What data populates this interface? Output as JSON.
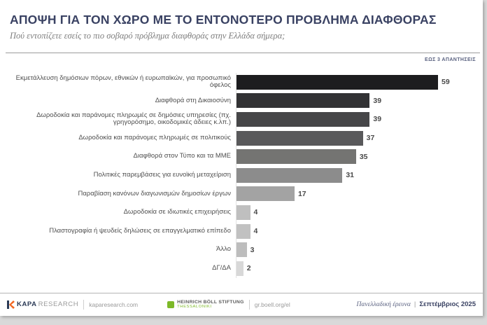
{
  "header": {
    "title": "ΑΠΟΨΗ ΓΙΑ ΤΟΝ ΧΩΡΟ ΜΕ ΤΟ ΕΝΤΟΝΟΤΕΡΟ ΠΡΟΒΛΗΜΑ ΔΙΑΦΘΟΡΑΣ",
    "subtitle": "Πού εντοπίζετε εσείς το πιο σοβαρό πρόβλημα διαφθοράς στην Ελλάδα σήμερα;",
    "answers_note": "ΕΩΣ 3 ΑΠΑΝΤΗΣΕΙΣ"
  },
  "chart_data": {
    "type": "bar",
    "orientation": "horizontal",
    "title": "ΑΠΟΨΗ ΓΙΑ ΤΟΝ ΧΩΡΟ ΜΕ ΤΟ ΕΝΤΟΝΟΤΕΡΟ ΠΡΟΒΛΗΜΑ ΔΙΑΦΘΟΡΑΣ",
    "subtitle": "Πού εντοπίζετε εσείς το πιο σοβαρό πρόβλημα διαφθοράς στην Ελλάδα σήμερα;",
    "categories": [
      "Εκμετάλλευση δημόσιων πόρων, εθνικών ή ευρωπαϊκών, για προσωπικό όφελος",
      "Διαφθορά στη Δικαιοσύνη",
      "Δωροδοκία και παράνομες πληρωμές σε δημόσιες υπηρεσίες (πχ. γρηγορόσημο, οικοδομικές άδειες κ.λπ.)",
      "Δωροδοκία και παράνομες πληρωμές σε πολιτικούς",
      "Διαφθορά στον Τύπο και τα ΜΜΕ",
      "Πολιτικές παρεμβάσεις για ευνοϊκή μεταχείριση",
      "Παραβίαση κανόνων διαγωνισμών δημοσίων έργων",
      "Δωροδοκία σε ιδιωτικές επιχειρήσεις",
      "Πλαστογραφία ή ψευδείς δηλώσεις σε επαγγελματικό επίπεδο",
      "Άλλο",
      "ΔΓ/ΔΑ"
    ],
    "values": [
      59,
      39,
      39,
      37,
      35,
      31,
      17,
      4,
      4,
      3,
      2
    ],
    "bar_colors": [
      "#1d1d1f",
      "#323234",
      "#464648",
      "#59595b",
      "#747472",
      "#8c8c8c",
      "#a3a3a3",
      "#bfbfbf",
      "#c1c1c1",
      "#bdbdbd",
      "#d8d8d8"
    ],
    "xlim": [
      0,
      62
    ],
    "value_labels_shown": true,
    "grid": false,
    "legend": false
  },
  "footer": {
    "kapa_brand": "KAPA",
    "kapa_brand2": "RESEARCH",
    "kapa_url": "kaparesearch.com",
    "boell_name": "HEINRICH BÖLL STIFTUNG",
    "boell_sub": "THESSALONIKI",
    "boell_url": "gr.boell.org/el",
    "survey_type": "Πανελλαδική έρευνα",
    "survey_separator": "|",
    "survey_date": "Σεπτέμβριος 2025"
  },
  "colors": {
    "title_navy": "#3a4263",
    "subtitle_gray": "#7d7d7d",
    "boell_green": "#7db928",
    "kapa_orange": "#f26722",
    "kapa_navy": "#2b3a56"
  }
}
